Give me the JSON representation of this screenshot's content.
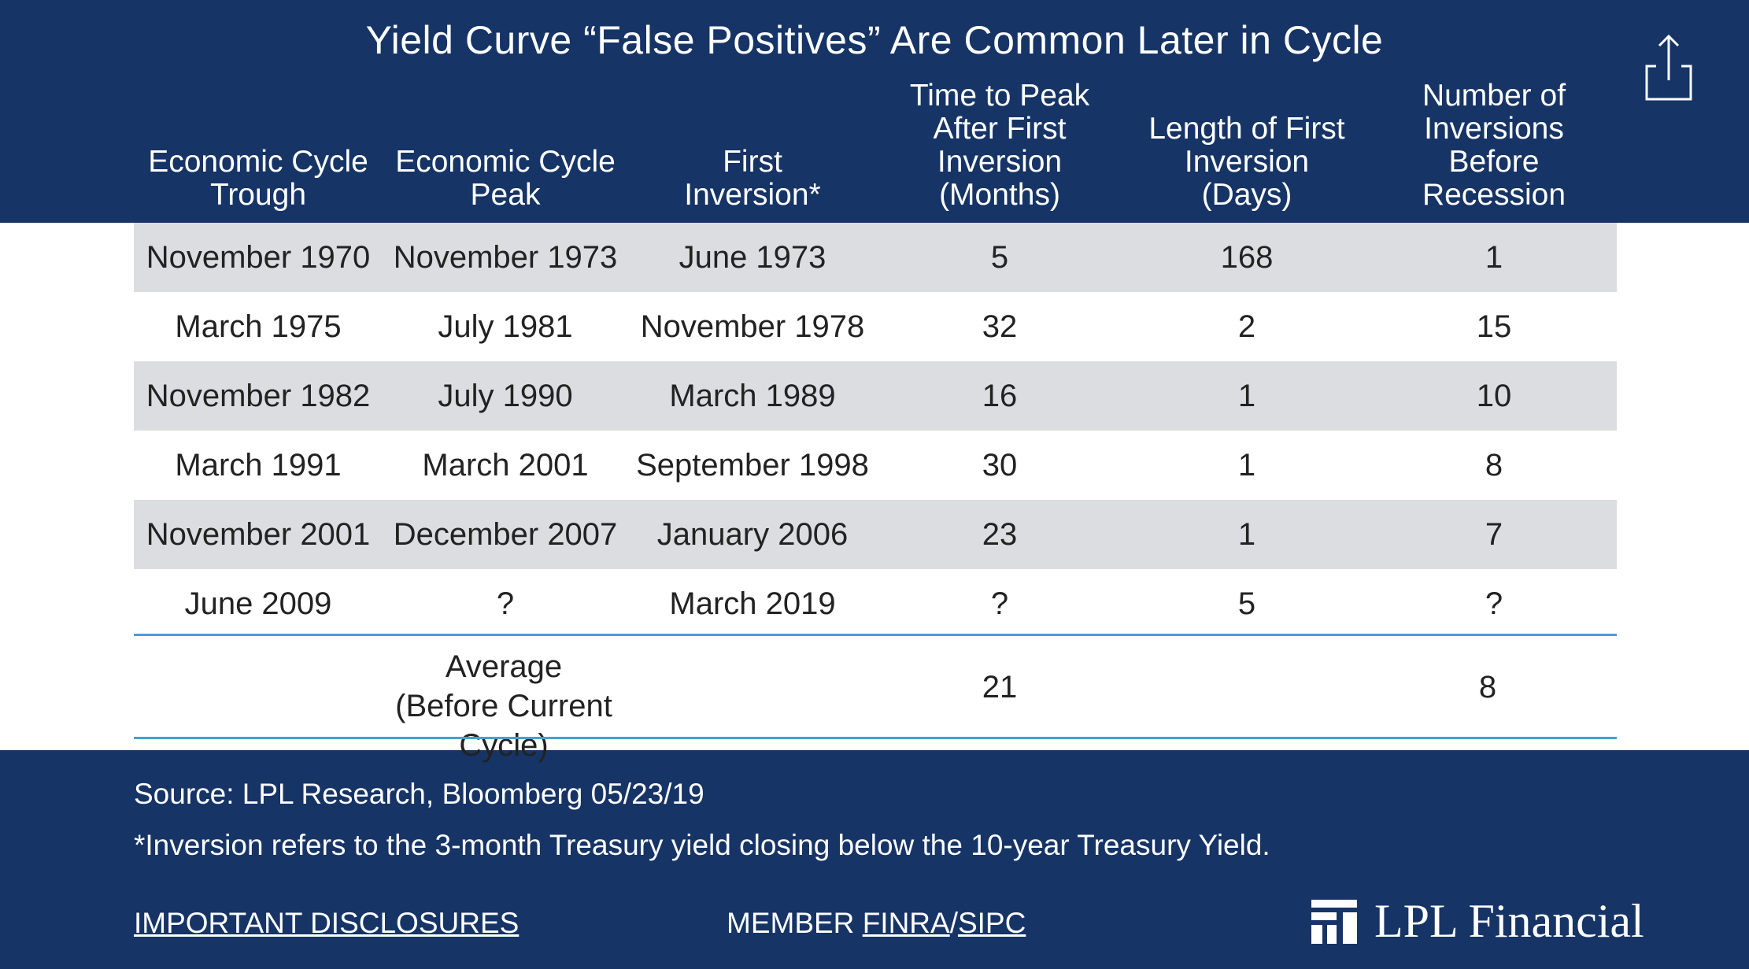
{
  "chart_data": {
    "type": "table",
    "title": "Yield Curve “False Positives” Are Common Later in Cycle",
    "columns": [
      "Economic Cycle Trough",
      "Economic Cycle Peak",
      "First Inversion*",
      "Time to Peak After First Inversion (Months)",
      "Length of First Inversion (Days)",
      "Number of Inversions Before Recession"
    ],
    "rows": [
      [
        "November 1970",
        "November 1973",
        "June 1973",
        "5",
        "168",
        "1"
      ],
      [
        "March 1975",
        "July 1981",
        "November 1978",
        "32",
        "2",
        "15"
      ],
      [
        "November 1982",
        "July 1990",
        "March 1989",
        "16",
        "1",
        "10"
      ],
      [
        "March 1991",
        "March 2001",
        "September 1998",
        "30",
        "1",
        "8"
      ],
      [
        "November 2001",
        "December 2007",
        "January 2006",
        "23",
        "1",
        "7"
      ],
      [
        "June 2009",
        "?",
        "March 2019",
        "?",
        "5",
        "?"
      ]
    ],
    "average": {
      "label_line1": "Average",
      "label_line2": "(Before Current Cycle)",
      "time_to_peak": "21",
      "num_inversions": "8"
    }
  },
  "header_lines": [
    [
      "Economic Cycle",
      "Trough"
    ],
    [
      "Economic Cycle",
      "Peak"
    ],
    [
      "First",
      "Inversion*"
    ],
    [
      "Time to Peak",
      "After First",
      "Inversion",
      "(Months)"
    ],
    [
      "Length of First",
      "Inversion",
      "(Days)"
    ],
    [
      "Number of",
      "Inversions",
      "Before",
      "Recession"
    ]
  ],
  "footer": {
    "source": "Source: LPL Research, Bloomberg   05/23/19",
    "note": "*Inversion refers to the 3-month Treasury yield closing below the 10-year Treasury Yield.",
    "disclosures": "IMPORTANT DISCLOSURES",
    "member": "MEMBER ",
    "finra": "FINRA",
    "slash": "/",
    "sipc": "SIPC",
    "logo_text": "LPL Financial"
  },
  "icons": {
    "share": "share-icon",
    "logo": "lpl-logo-icon"
  },
  "colors": {
    "navy": "#163466",
    "row_shade": "#dcdde0",
    "rule": "#4a9fd4"
  }
}
